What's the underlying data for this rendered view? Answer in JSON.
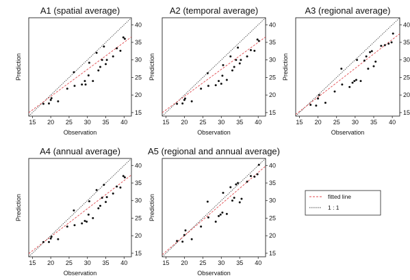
{
  "chart_data": [
    {
      "type": "scatter",
      "title": "A1 (spatial average)",
      "xlabel": "Observation",
      "ylabel": "Prediction",
      "xlim": [
        14,
        42
      ],
      "ylim": [
        14,
        42
      ],
      "xticks": [
        "15",
        "20",
        "25",
        "30",
        "35",
        "40"
      ],
      "yticks": [
        "15",
        "20",
        "25",
        "30",
        "35",
        "40"
      ],
      "fit": [
        0.77,
        4.2
      ],
      "points": [
        [
          18.0,
          17.5
        ],
        [
          19.5,
          17.6
        ],
        [
          20.0,
          18.6
        ],
        [
          20.2,
          19.1
        ],
        [
          22.0,
          18.2
        ],
        [
          24.5,
          21.8
        ],
        [
          26.3,
          26.5
        ],
        [
          26.5,
          22.6
        ],
        [
          28.5,
          23.0
        ],
        [
          29.3,
          24.0
        ],
        [
          29.5,
          23.0
        ],
        [
          30.3,
          25.6
        ],
        [
          30.5,
          29.2
        ],
        [
          31.5,
          24.0
        ],
        [
          32.5,
          32.0
        ],
        [
          33.0,
          27.0
        ],
        [
          33.5,
          28.0
        ],
        [
          34.0,
          30.0
        ],
        [
          34.5,
          33.8
        ],
        [
          35.0,
          28.8
        ],
        [
          35.3,
          30.0
        ],
        [
          37.0,
          31.0
        ],
        [
          38.0,
          33.3
        ],
        [
          39.0,
          32.6
        ],
        [
          39.8,
          36.4
        ],
        [
          40.2,
          36.0
        ]
      ]
    },
    {
      "type": "scatter",
      "title": "A2 (temporal average)",
      "xlabel": "Observation",
      "ylabel": "Prediction",
      "xlim": [
        14,
        42
      ],
      "ylim": [
        14,
        42
      ],
      "xticks": [
        "15",
        "20",
        "25",
        "30",
        "35",
        "40"
      ],
      "yticks": [
        "15",
        "20",
        "25",
        "30",
        "35",
        "40"
      ],
      "fit": [
        0.77,
        4.2
      ],
      "points": [
        [
          18.0,
          17.5
        ],
        [
          19.5,
          17.6
        ],
        [
          20.0,
          18.6
        ],
        [
          20.2,
          19.0
        ],
        [
          22.0,
          18.2
        ],
        [
          24.5,
          21.8
        ],
        [
          26.3,
          26.2
        ],
        [
          26.5,
          22.6
        ],
        [
          28.5,
          22.8
        ],
        [
          29.3,
          24.0
        ],
        [
          30.0,
          23.2
        ],
        [
          30.3,
          25.5
        ],
        [
          30.5,
          28.5
        ],
        [
          31.5,
          24.3
        ],
        [
          32.5,
          31.0
        ],
        [
          33.0,
          27.0
        ],
        [
          33.5,
          28.0
        ],
        [
          34.0,
          30.0
        ],
        [
          34.5,
          33.5
        ],
        [
          35.0,
          29.0
        ],
        [
          35.3,
          30.0
        ],
        [
          37.0,
          31.0
        ],
        [
          38.0,
          32.8
        ],
        [
          39.0,
          32.6
        ],
        [
          39.8,
          35.8
        ],
        [
          40.2,
          35.4
        ]
      ]
    },
    {
      "type": "scatter",
      "title": "A3 (regional average)",
      "xlabel": "Observation",
      "ylabel": "Prediction",
      "xlim": [
        14,
        42
      ],
      "ylim": [
        14,
        42
      ],
      "xticks": [
        "15",
        "20",
        "25",
        "30",
        "35",
        "40"
      ],
      "yticks": [
        "15",
        "20",
        "25",
        "30",
        "35",
        "40"
      ],
      "fit": [
        0.82,
        3.0
      ],
      "points": [
        [
          18.0,
          17.2
        ],
        [
          19.5,
          17.0
        ],
        [
          20.0,
          19.0
        ],
        [
          20.3,
          20.0
        ],
        [
          22.0,
          17.8
        ],
        [
          24.5,
          21.0
        ],
        [
          26.3,
          27.5
        ],
        [
          26.5,
          23.0
        ],
        [
          28.5,
          22.3
        ],
        [
          29.3,
          23.5
        ],
        [
          29.8,
          24.0
        ],
        [
          30.3,
          24.3
        ],
        [
          30.5,
          30.0
        ],
        [
          31.5,
          24.0
        ],
        [
          32.5,
          29.8
        ],
        [
          33.0,
          31.0
        ],
        [
          33.5,
          27.5
        ],
        [
          34.0,
          32.2
        ],
        [
          34.5,
          32.5
        ],
        [
          35.0,
          28.2
        ],
        [
          35.5,
          29.5
        ],
        [
          37.0,
          34.0
        ],
        [
          38.0,
          34.2
        ],
        [
          39.0,
          34.6
        ],
        [
          39.8,
          35.0
        ],
        [
          40.2,
          37.5
        ]
      ]
    },
    {
      "type": "scatter",
      "title": "A4 (annual average)",
      "xlabel": "Observation",
      "ylabel": "Prediction",
      "xlim": [
        14,
        42
      ],
      "ylim": [
        14,
        42
      ],
      "xticks": [
        "15",
        "20",
        "25",
        "30",
        "35",
        "40"
      ],
      "yticks": [
        "15",
        "20",
        "25",
        "30",
        "35",
        "40"
      ],
      "fit": [
        0.8,
        3.7
      ],
      "points": [
        [
          18.0,
          18.2
        ],
        [
          19.5,
          18.2
        ],
        [
          20.0,
          19.2
        ],
        [
          20.2,
          19.7
        ],
        [
          22.0,
          19.0
        ],
        [
          24.5,
          22.6
        ],
        [
          26.3,
          27.2
        ],
        [
          26.5,
          23.0
        ],
        [
          28.5,
          23.5
        ],
        [
          29.3,
          24.2
        ],
        [
          29.8,
          24.0
        ],
        [
          30.3,
          26.0
        ],
        [
          30.5,
          29.8
        ],
        [
          31.5,
          25.0
        ],
        [
          32.5,
          33.0
        ],
        [
          33.0,
          27.8
        ],
        [
          33.5,
          28.5
        ],
        [
          34.0,
          30.8
        ],
        [
          34.5,
          34.5
        ],
        [
          35.0,
          29.6
        ],
        [
          35.3,
          31.0
        ],
        [
          37.0,
          32.0
        ],
        [
          38.0,
          34.0
        ],
        [
          39.0,
          33.7
        ],
        [
          39.8,
          37.0
        ],
        [
          40.2,
          36.6
        ]
      ]
    },
    {
      "type": "scatter",
      "title": "A5 (regional and annual average)",
      "xlabel": "Observation",
      "ylabel": "Prediction",
      "xlim": [
        14,
        42
      ],
      "ylim": [
        14,
        42
      ],
      "xticks": [
        "15",
        "20",
        "25",
        "30",
        "35",
        "40"
      ],
      "yticks": [
        "15",
        "20",
        "25",
        "30",
        "35",
        "40"
      ],
      "fit": [
        0.9,
        2.0
      ],
      "points": [
        [
          18.0,
          18.5
        ],
        [
          19.5,
          18.3
        ],
        [
          20.0,
          20.2
        ],
        [
          20.3,
          21.5
        ],
        [
          22.0,
          19.0
        ],
        [
          24.5,
          22.6
        ],
        [
          26.3,
          29.7
        ],
        [
          26.5,
          25.2
        ],
        [
          28.5,
          24.0
        ],
        [
          29.3,
          25.6
        ],
        [
          29.8,
          26.0
        ],
        [
          30.3,
          26.6
        ],
        [
          30.5,
          32.2
        ],
        [
          31.5,
          26.2
        ],
        [
          32.5,
          33.8
        ],
        [
          33.0,
          30.0
        ],
        [
          33.5,
          30.8
        ],
        [
          34.0,
          34.6
        ],
        [
          34.5,
          35.0
        ],
        [
          35.0,
          29.5
        ],
        [
          35.5,
          30.5
        ],
        [
          37.0,
          35.4
        ],
        [
          38.0,
          37.0
        ],
        [
          39.0,
          36.8
        ],
        [
          39.8,
          37.5
        ],
        [
          40.2,
          40.2
        ]
      ]
    }
  ],
  "legend": {
    "fitted_label": "fitted line",
    "identity_label": "1 : 1",
    "fitted_color": "#e0474c",
    "identity_color": "#333333"
  }
}
